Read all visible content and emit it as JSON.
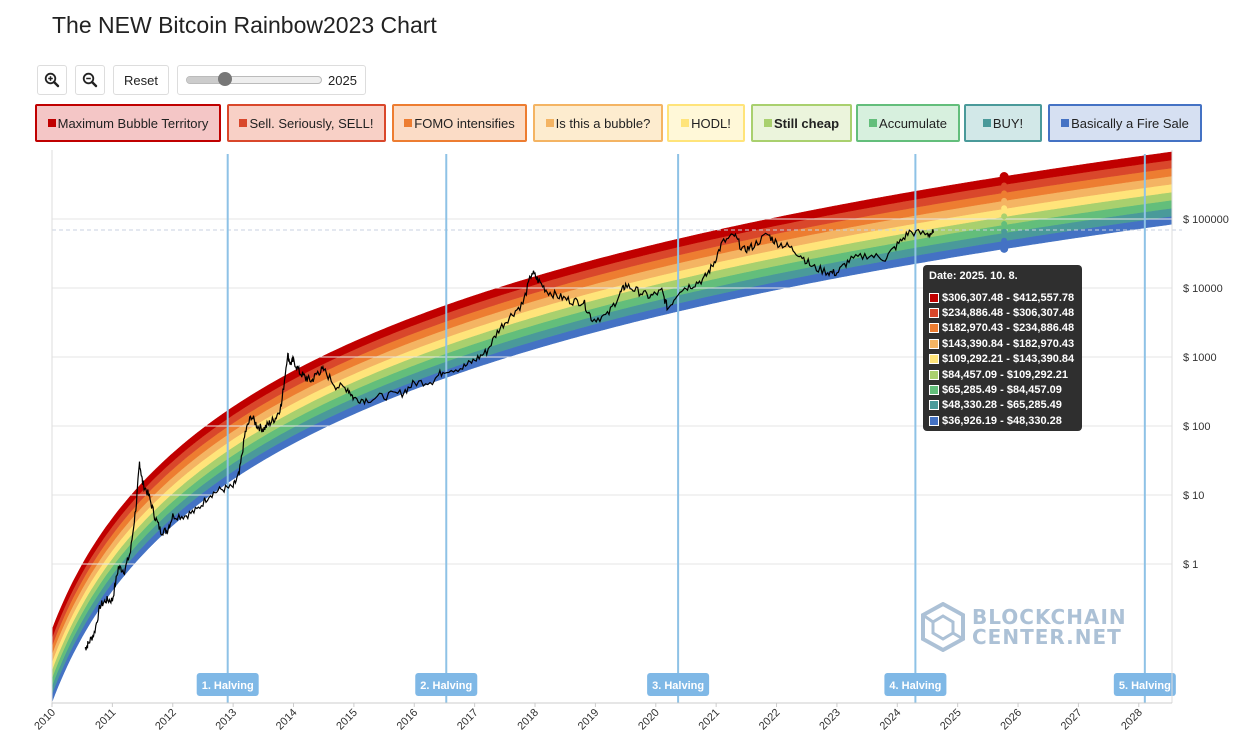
{
  "title": "The NEW Bitcoin Rainbow2023 Chart",
  "toolbar": {
    "zoom_in_icon": "zoom-in-icon",
    "zoom_out_icon": "zoom-out-icon",
    "reset_label": "Reset",
    "slider_value": "2025",
    "slider_position": 0.28
  },
  "legend": [
    {
      "label": "Maximum Bubble Territory",
      "color": "#c00000",
      "bg": "#f4c6c6"
    },
    {
      "label": "Sell. Seriously, SELL!",
      "color": "#d9472b",
      "bg": "#f8d0c6"
    },
    {
      "label": "FOMO intensifies",
      "color": "#ed7d31",
      "bg": "#fbdcc6"
    },
    {
      "label": "Is this a bubble?",
      "color": "#f4b463",
      "bg": "#fdeccf"
    },
    {
      "label": "HODL!",
      "color": "#ffe47a",
      "bg": "#fff8d8"
    },
    {
      "label": "Still cheap",
      "color": "#a9d06e",
      "bg": "#ebf4dc",
      "bold": true
    },
    {
      "label": "Accumulate",
      "color": "#63be7b",
      "bg": "#d7f0de"
    },
    {
      "label": "BUY!",
      "color": "#4a9a9a",
      "bg": "#d2e8e8"
    },
    {
      "label": "Basically a Fire Sale",
      "color": "#4472c4",
      "bg": "#d6e0f2"
    }
  ],
  "tooltip": {
    "date": "Date: 2025. 10. 8.",
    "rows": [
      "$306,307.48 - $412,557.78",
      "$234,886.48 - $306,307.48",
      "$182,970.43 - $234,886.48",
      "$143,390.84 - $182,970.43",
      "$109,292.21 - $143,390.84",
      "$84,457.09 - $109,292.21",
      "$65,285.49 - $84,457.09",
      "$48,330.28 - $65,285.49",
      "$36,926.19 - $48,330.28"
    ]
  },
  "watermark": {
    "line1": "BLOCKCHAIN",
    "line2": "CENTER.NET"
  },
  "chart_data": {
    "type": "area",
    "yscale": "log",
    "ylim": [
      0.01,
      800000
    ],
    "xlim": [
      2010.0,
      2028.55
    ],
    "ytick_labels": [
      "$ 100000",
      "$ 10000",
      "$ 1000",
      "$ 100",
      "$ 10",
      "$ 1"
    ],
    "ytick_values": [
      100000,
      10000,
      1000,
      100,
      10,
      1
    ],
    "xtick_labels": [
      "2010",
      "2011",
      "2012",
      "2013",
      "2014",
      "2015",
      "2016",
      "2017",
      "2018",
      "2019",
      "2020",
      "2021",
      "2022",
      "2023",
      "2024",
      "2025",
      "2026",
      "2027",
      "2028"
    ],
    "halvings": [
      {
        "label": "1. Halving",
        "date": 2012.91
      },
      {
        "label": "2. Halving",
        "date": 2016.53
      },
      {
        "label": "3. Halving",
        "date": 2020.37
      },
      {
        "label": "4. Halving",
        "date": 2024.3
      },
      {
        "label": "5. Halving",
        "date": 2028.1
      }
    ],
    "bands_at_2025_10": [
      36926.19,
      48330.28,
      65285.49,
      84457.09,
      109292.21,
      143390.84,
      182970.43,
      234886.48,
      306307.48,
      412557.78
    ],
    "band_colors": [
      "#4472c4",
      "#4a9a9a",
      "#63be7b",
      "#a9d06e",
      "#ffe47a",
      "#f4b463",
      "#ed7d31",
      "#d9472b",
      "#c00000"
    ],
    "price_series": {
      "x": [
        2010.55,
        2010.6,
        2010.7,
        2010.8,
        2010.9,
        2011.0,
        2011.1,
        2011.2,
        2011.3,
        2011.4,
        2011.45,
        2011.5,
        2011.6,
        2011.7,
        2011.8,
        2011.9,
        2012.0,
        2012.2,
        2012.4,
        2012.6,
        2012.8,
        2013.0,
        2013.1,
        2013.2,
        2013.3,
        2013.4,
        2013.5,
        2013.6,
        2013.7,
        2013.8,
        2013.9,
        2013.95,
        2014.0,
        2014.1,
        2014.2,
        2014.3,
        2014.4,
        2014.5,
        2014.7,
        2014.9,
        2015.0,
        2015.2,
        2015.5,
        2015.8,
        2016.0,
        2016.3,
        2016.5,
        2016.8,
        2017.0,
        2017.2,
        2017.4,
        2017.6,
        2017.8,
        2017.95,
        2018.05,
        2018.2,
        2018.4,
        2018.6,
        2018.8,
        2018.95,
        2019.2,
        2019.4,
        2019.5,
        2019.7,
        2019.9,
        2020.1,
        2020.2,
        2020.4,
        2020.6,
        2020.8,
        2020.95,
        2021.1,
        2021.3,
        2021.45,
        2021.6,
        2021.85,
        2022.0,
        2022.2,
        2022.4,
        2022.6,
        2022.85,
        2023.0,
        2023.2,
        2023.5,
        2023.8,
        2024.0,
        2024.2,
        2024.5,
        2024.6
      ],
      "y": [
        0.06,
        0.07,
        0.1,
        0.25,
        0.3,
        0.3,
        0.9,
        0.8,
        1.5,
        8,
        30,
        15,
        10,
        5,
        3,
        3,
        5,
        5,
        6,
        10,
        12,
        13,
        20,
        80,
        140,
        100,
        90,
        110,
        130,
        200,
        1100,
        800,
        900,
        600,
        500,
        450,
        600,
        650,
        380,
        350,
        250,
        240,
        270,
        300,
        420,
        450,
        650,
        700,
        900,
        1200,
        2500,
        4000,
        6000,
        17000,
        13000,
        9000,
        7500,
        6500,
        6300,
        3500,
        4000,
        8000,
        11000,
        9000,
        7500,
        9000,
        5000,
        9500,
        11000,
        13500,
        22000,
        45000,
        58000,
        35000,
        40000,
        60000,
        45000,
        40000,
        30000,
        20000,
        17000,
        16500,
        25000,
        30000,
        27000,
        42000,
        65000,
        60000,
        63000
      ]
    }
  }
}
